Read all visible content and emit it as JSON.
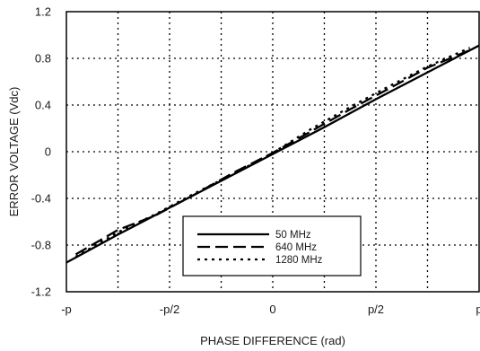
{
  "chart_data": {
    "type": "line",
    "xlabel": "PHASE DIFFERENCE (rad)",
    "ylabel": "ERROR VOLTAGE (Vdc)",
    "xlim": [
      -3.14159,
      3.14159
    ],
    "ylim": [
      -1.2,
      1.2
    ],
    "x_ticks": [
      -3.14159,
      -1.5708,
      0,
      1.5708,
      3.14159
    ],
    "x_tick_labels": [
      "-p",
      "-p/2",
      "0",
      "p/2",
      "p"
    ],
    "y_ticks": [
      -1.2,
      -0.8,
      -0.4,
      0,
      0.4,
      0.8,
      1.2
    ],
    "y_tick_labels": [
      "-1.2",
      "-0.8",
      "-0.4",
      "0",
      "0.4",
      "0.8",
      "1.2"
    ],
    "grid": true,
    "legend_position": "lower-center",
    "series": [
      {
        "name": "50 MHz",
        "style": "solid",
        "x": [
          -3.14159,
          -2.356,
          -1.5708,
          -0.785,
          0,
          0.785,
          1.5708,
          2.356,
          3.14159
        ],
        "y": [
          -0.95,
          -0.71,
          -0.48,
          -0.25,
          -0.02,
          0.21,
          0.45,
          0.68,
          0.91
        ]
      },
      {
        "name": "640 MHz",
        "style": "dashed",
        "x": [
          -3.0,
          -2.356,
          -1.8,
          -1.2,
          -0.6,
          0,
          0.6,
          1.2,
          1.8,
          2.356,
          3.0
        ],
        "y": [
          -0.88,
          -0.67,
          -0.55,
          -0.37,
          -0.18,
          -0.01,
          0.18,
          0.37,
          0.55,
          0.72,
          0.87
        ]
      },
      {
        "name": "1280 MHz",
        "style": "dotted",
        "x": [
          -3.0,
          -2.356,
          -1.8,
          -1.2,
          -0.6,
          0,
          0.6,
          1.2,
          1.8,
          2.356,
          3.0
        ],
        "y": [
          -0.9,
          -0.69,
          -0.54,
          -0.36,
          -0.19,
          -0.01,
          0.2,
          0.39,
          0.57,
          0.73,
          0.89
        ]
      }
    ]
  }
}
